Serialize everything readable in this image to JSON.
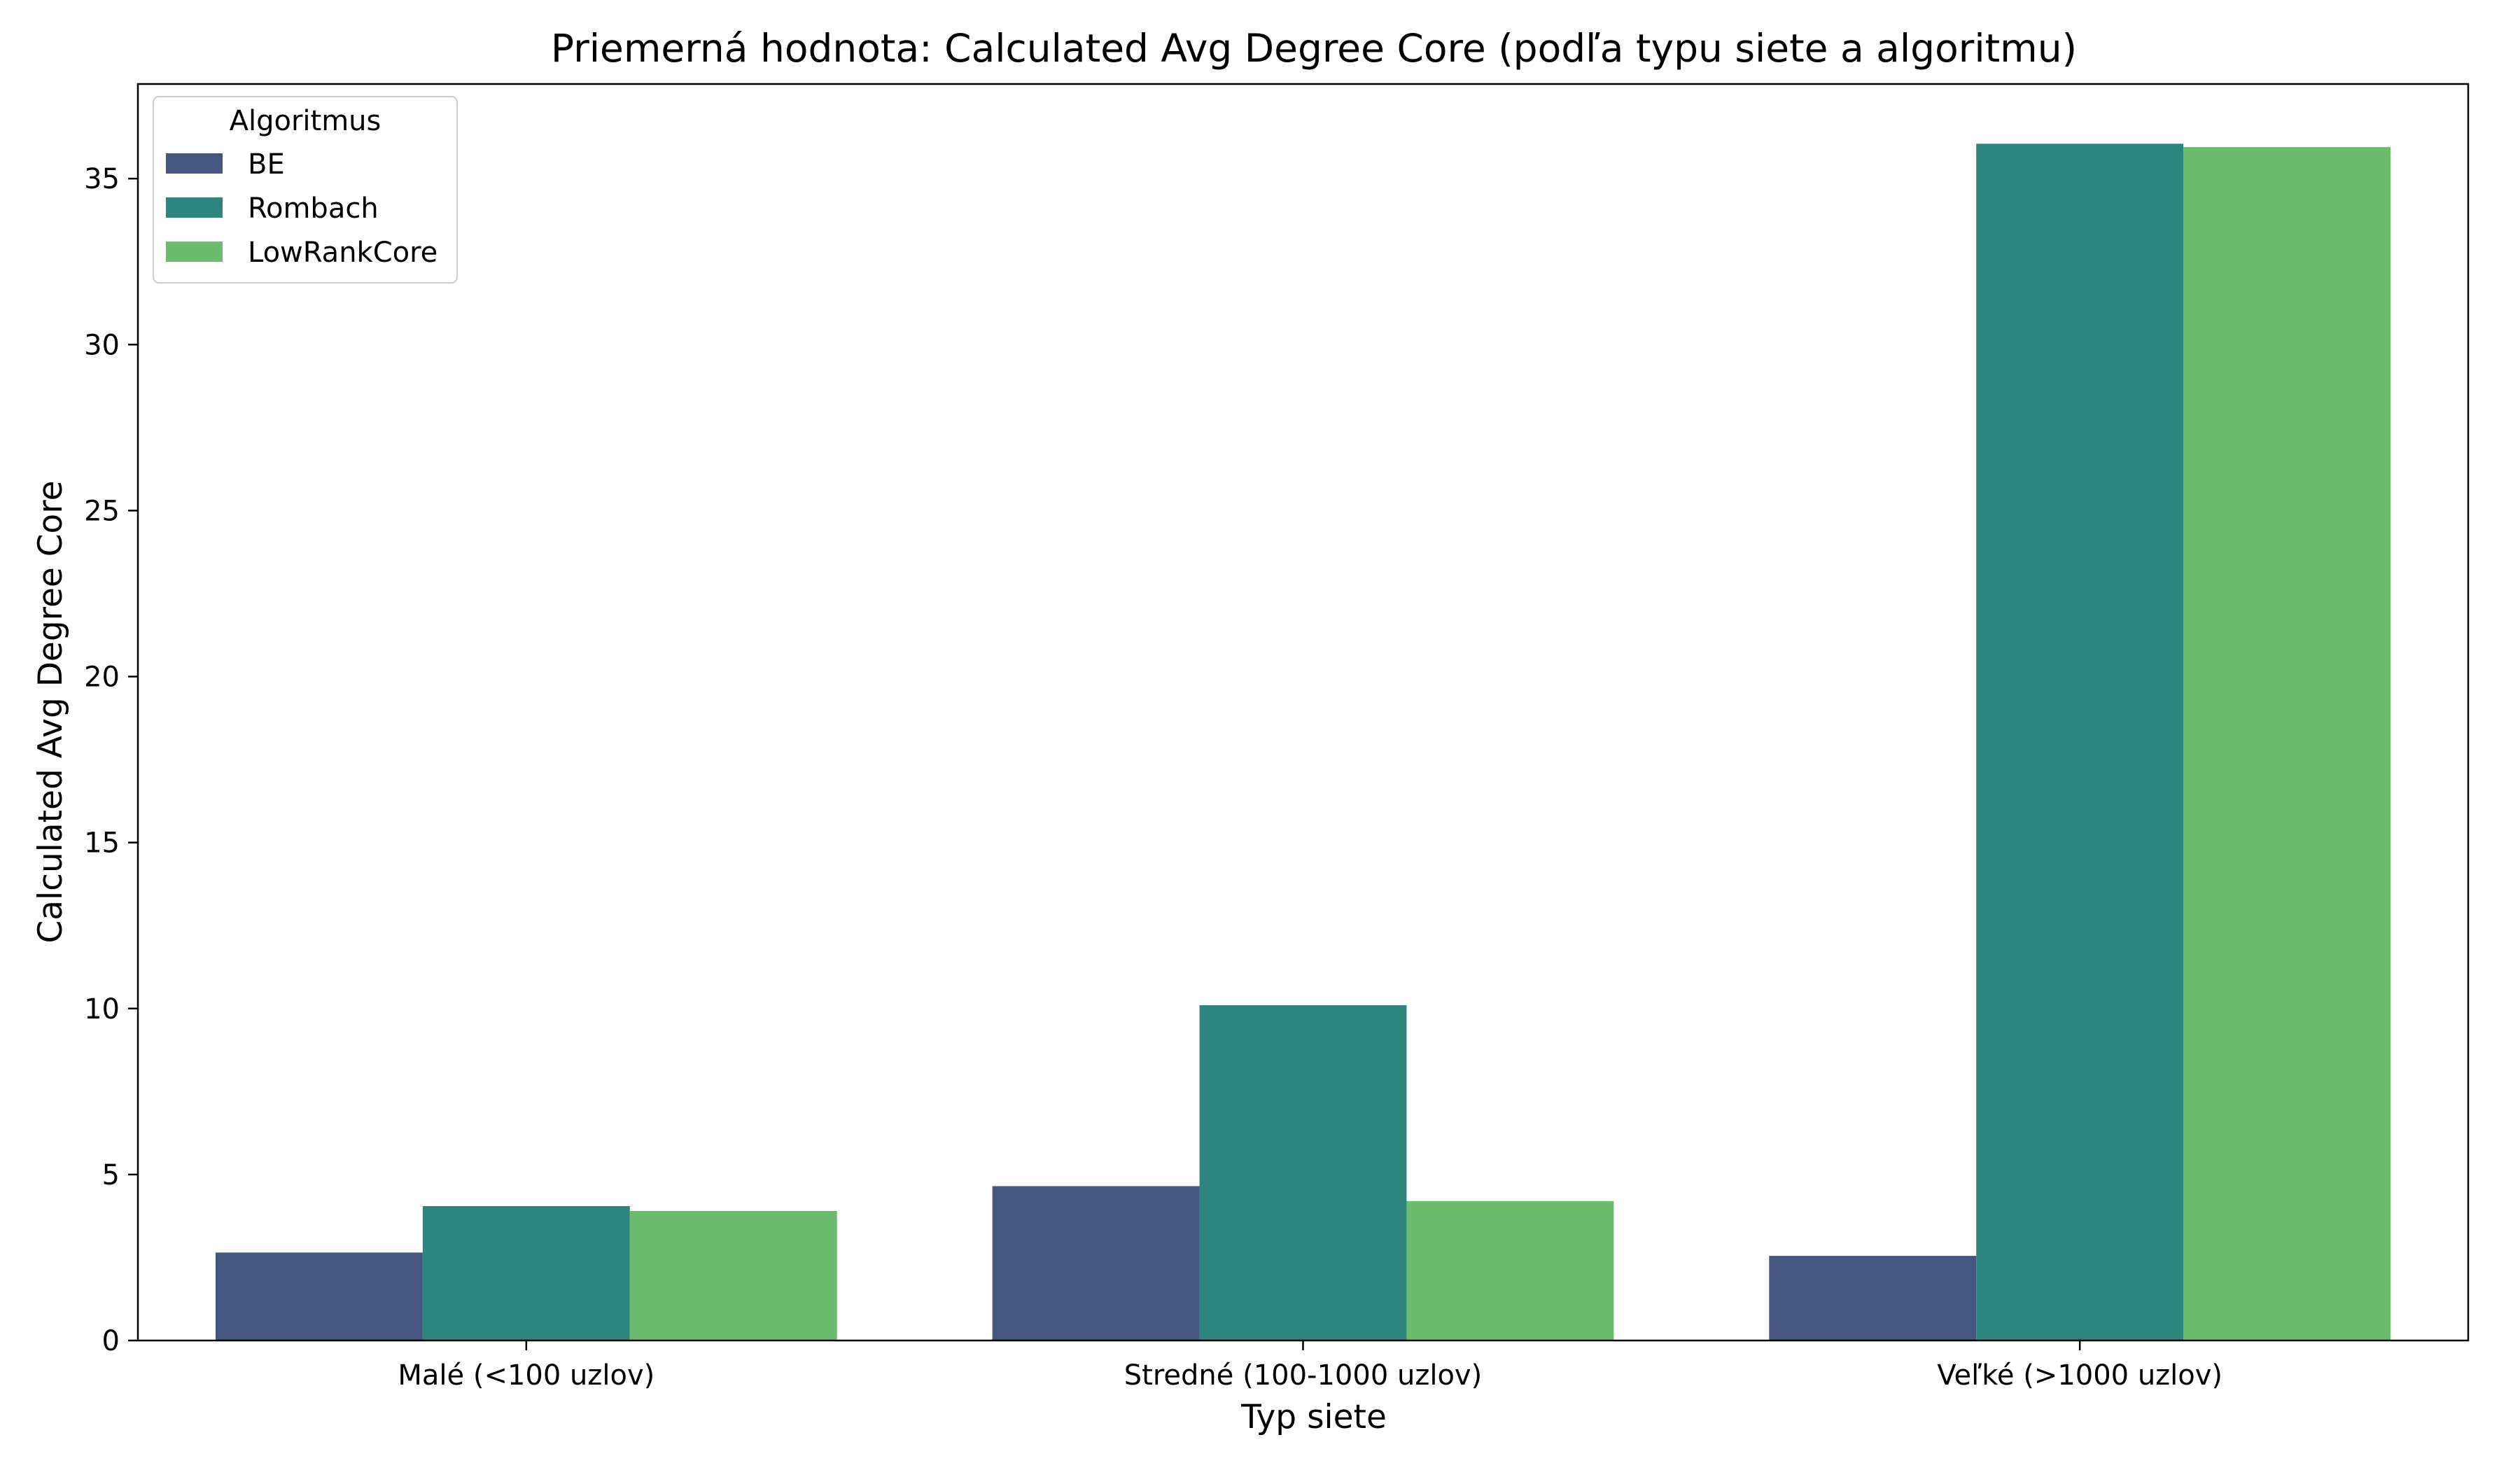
{
  "chart_data": {
    "type": "bar",
    "title": "Priemerná hodnota: Calculated Avg Degree Core (podľa typu siete a algoritmu)",
    "xlabel": "Typ siete",
    "ylabel": "Calculated Avg Degree Core",
    "categories": [
      "Malé (<100 uzlov)",
      "Stredné (100-1000 uzlov)",
      "Veľké (>1000 uzlov)"
    ],
    "series": [
      {
        "name": "BE",
        "color": "#46577f",
        "values": [
          2.65,
          4.65,
          2.55
        ]
      },
      {
        "name": "Rombach",
        "color": "#2e857e",
        "values": [
          4.05,
          10.1,
          36.05
        ]
      },
      {
        "name": "LowRankCore",
        "color": "#6bbc6d",
        "values": [
          3.9,
          4.2,
          35.95
        ]
      }
    ],
    "yticks": [
      0,
      5,
      10,
      15,
      20,
      25,
      30,
      35
    ],
    "ylim": [
      0,
      37.85
    ],
    "grid": false,
    "legend": {
      "title": "Algoritmus",
      "placement": "top-left"
    }
  }
}
